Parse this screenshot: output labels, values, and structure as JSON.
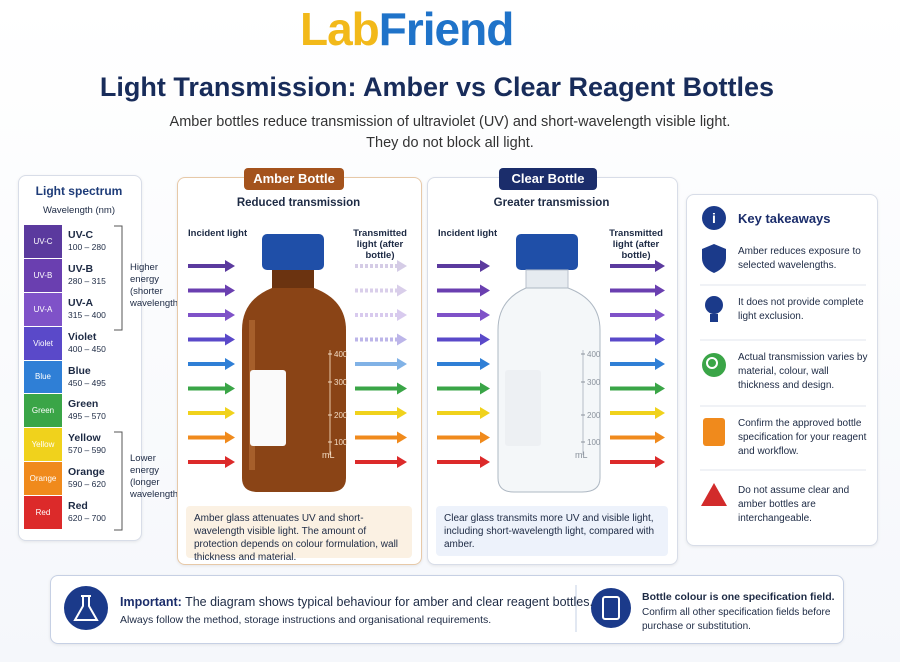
{
  "logo": {
    "first": "Lab",
    "second": "Friend"
  },
  "header": {
    "title": "Light Transmission: Amber vs Clear Reagent Bottles",
    "subtitle": [
      "Amber bottles reduce transmission of ultraviolet (UV) and short-wavelength visible light.",
      "They do not block all light."
    ]
  },
  "spectrum": {
    "title": "Light spectrum",
    "unit": "Wavelength (nm)",
    "bands": [
      {
        "swatch": "UV-C",
        "name": "UV-C",
        "range": "100 – 280",
        "color": "#5b3a9e"
      },
      {
        "swatch": "UV-B",
        "name": "UV-B",
        "range": "280 – 315",
        "color": "#6a3fb0"
      },
      {
        "swatch": "UV-A",
        "name": "UV-A",
        "range": "315 – 400",
        "color": "#7f52c8"
      },
      {
        "swatch": "Violet",
        "name": "Violet",
        "range": "400 – 450",
        "color": "#5a49c9"
      },
      {
        "swatch": "Blue",
        "name": "Blue",
        "range": "450 – 495",
        "color": "#2f7fd6"
      },
      {
        "swatch": "Green",
        "name": "Green",
        "range": "495 – 570",
        "color": "#3aa547"
      },
      {
        "swatch": "Yellow",
        "name": "Yellow",
        "range": "570 – 590",
        "color": "#f0d21c"
      },
      {
        "swatch": "Orange",
        "name": "Orange",
        "range": "590 – 620",
        "color": "#f08a1c"
      },
      {
        "swatch": "Red",
        "name": "Red",
        "range": "620 – 700",
        "color": "#dc2a2a"
      }
    ],
    "higher": "Higher energy (shorter wavelengths)",
    "lower": "Lower energy (longer wavelengths)"
  },
  "amber": {
    "badge": "Amber Bottle",
    "heading": "Reduced transmission",
    "incident": "Incident light",
    "transmitted": "Transmitted light (after bottle)",
    "scale": [
      "400",
      "300",
      "200",
      "100",
      "mL"
    ],
    "note": "Amber glass attenuates UV and short-wavelength visible light. The amount of protection depends on colour formulation, wall thickness and material."
  },
  "clear": {
    "badge": "Clear Bottle",
    "heading": "Greater transmission",
    "incident": "Incident light",
    "transmitted": "Transmitted light (after bottle)",
    "scale": [
      "400",
      "300",
      "200",
      "100",
      "mL"
    ],
    "note": "Clear glass transmits more UV and visible light, including short-wavelength light, compared with amber."
  },
  "takeaways": {
    "title": "Key takeaways",
    "items": [
      "Amber reduces exposure to selected wavelengths.",
      "It does not provide complete light exclusion.",
      "Actual transmission varies by material, colour, wall thickness and design.",
      "Confirm the approved bottle specification for your reagent and workflow.",
      "Do not assume clear and amber bottles are interchangeable."
    ]
  },
  "footer": {
    "label": "Important:",
    "text": "The diagram shows typical behaviour for amber and clear reagent bottles.",
    "line2": "Always follow the method, storage instructions and organisational requirements.",
    "right_title": "Bottle colour is one specification field.",
    "right_text": "Confirm all other specification fields before purchase or substitution."
  }
}
